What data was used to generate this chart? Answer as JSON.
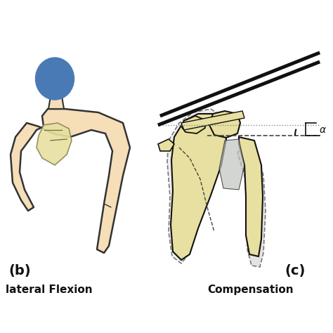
{
  "background_color": "#ffffff",
  "fig_width": 4.74,
  "fig_height": 4.74,
  "dpi": 100,
  "label_b": "(b)",
  "label_c": "(c)",
  "text_b": "lateral Flexion",
  "text_c": "Compensation",
  "skin_color": "#f5deb8",
  "skin_edge": "#333333",
  "bone_color": "#e8e0a0",
  "bone_fill": "#e0d890",
  "blue_color": "#4a7ab5",
  "gray_color": "#c8c8c8",
  "dashed_color": "#444444",
  "line_color": "#111111",
  "alpha_label": "α"
}
